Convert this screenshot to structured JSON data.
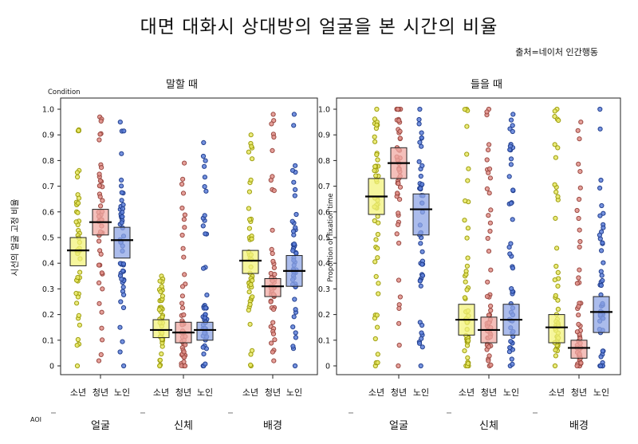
{
  "title": "대면 대화시 상대방의 얼굴을 본 시간의 비율",
  "source": "출처=네이처 인간행동",
  "colors": {
    "groups": [
      "#d8d83a",
      "#d77a72",
      "#4a6fd0"
    ],
    "box_fill": [
      "#f3f37c",
      "#f0a9a3",
      "#8fa6e6"
    ],
    "point_stroke": [
      "#9e9e10",
      "#9b4a43",
      "#23408f"
    ],
    "point_fill": [
      "#e7e764",
      "#e08f88",
      "#5d7fd9"
    ]
  },
  "chart_data": [
    {
      "type": "scatter",
      "panel_title": "말할 때",
      "legend_label": "Condition",
      "ylabel": "시선의 얼굴 고정 비율",
      "xlabel": "AOI",
      "ylim": [
        0,
        1.0
      ],
      "yticks": [
        "0",
        "0.1",
        "0.2",
        "0.3",
        "0.4",
        "0.5",
        "0.6",
        "0.7",
        "0.8",
        "0.9",
        "1.0"
      ],
      "groups": [
        "소년",
        "청년",
        "노인"
      ],
      "categories": [
        "얼굴",
        "신체",
        "배경"
      ],
      "series": [
        {
          "category": "얼굴",
          "group": "소년",
          "mean": 0.45,
          "ci": [
            0.39,
            0.5
          ],
          "point_range": [
            0.0,
            0.92
          ]
        },
        {
          "category": "얼굴",
          "group": "청년",
          "mean": 0.56,
          "ci": [
            0.51,
            0.61
          ],
          "point_range": [
            0.02,
            0.97
          ]
        },
        {
          "category": "얼굴",
          "group": "노인",
          "mean": 0.49,
          "ci": [
            0.42,
            0.54
          ],
          "point_range": [
            0.0,
            0.95
          ]
        },
        {
          "category": "신체",
          "group": "소년",
          "mean": 0.14,
          "ci": [
            0.11,
            0.18
          ],
          "point_range": [
            0.0,
            0.35
          ]
        },
        {
          "category": "신체",
          "group": "청년",
          "mean": 0.13,
          "ci": [
            0.09,
            0.17
          ],
          "point_range": [
            0.0,
            0.79
          ]
        },
        {
          "category": "신체",
          "group": "노인",
          "mean": 0.14,
          "ci": [
            0.1,
            0.17
          ],
          "point_range": [
            0.0,
            0.87
          ]
        },
        {
          "category": "배경",
          "group": "소년",
          "mean": 0.41,
          "ci": [
            0.36,
            0.45
          ],
          "point_range": [
            0.0,
            0.9
          ]
        },
        {
          "category": "배경",
          "group": "청년",
          "mean": 0.31,
          "ci": [
            0.27,
            0.34
          ],
          "point_range": [
            0.02,
            0.98
          ]
        },
        {
          "category": "배경",
          "group": "노인",
          "mean": 0.37,
          "ci": [
            0.31,
            0.43
          ],
          "point_range": [
            0.0,
            0.98
          ]
        }
      ]
    },
    {
      "type": "scatter",
      "panel_title": "들을 때",
      "ylabel": "Proportion of fixation time",
      "ylim": [
        0,
        1.0
      ],
      "yticks": [
        "0",
        "0.1",
        "0.2",
        "0.3",
        "0.4",
        "0.5",
        "0.6",
        "0.7",
        "0.8",
        "0.9",
        "1.0"
      ],
      "groups": [
        "소년",
        "청년",
        "노인"
      ],
      "categories": [
        "얼굴",
        "신체",
        "배경"
      ],
      "series": [
        {
          "category": "얼굴",
          "group": "소년",
          "mean": 0.66,
          "ci": [
            0.59,
            0.73
          ],
          "point_range": [
            0.0,
            1.0
          ]
        },
        {
          "category": "얼굴",
          "group": "청년",
          "mean": 0.79,
          "ci": [
            0.73,
            0.85
          ],
          "point_range": [
            0.0,
            1.0
          ]
        },
        {
          "category": "얼굴",
          "group": "노인",
          "mean": 0.61,
          "ci": [
            0.51,
            0.67
          ],
          "point_range": [
            0.0,
            1.0
          ]
        },
        {
          "category": "신체",
          "group": "소년",
          "mean": 0.18,
          "ci": [
            0.12,
            0.24
          ],
          "point_range": [
            0.0,
            1.0
          ]
        },
        {
          "category": "신체",
          "group": "청년",
          "mean": 0.14,
          "ci": [
            0.09,
            0.19
          ],
          "point_range": [
            0.0,
            1.0
          ]
        },
        {
          "category": "신체",
          "group": "노인",
          "mean": 0.18,
          "ci": [
            0.12,
            0.24
          ],
          "point_range": [
            0.0,
            0.98
          ]
        },
        {
          "category": "배경",
          "group": "소년",
          "mean": 0.15,
          "ci": [
            0.09,
            0.2
          ],
          "point_range": [
            0.0,
            1.0
          ]
        },
        {
          "category": "배경",
          "group": "청년",
          "mean": 0.07,
          "ci": [
            0.03,
            0.1
          ],
          "point_range": [
            0.0,
            0.95
          ]
        },
        {
          "category": "배경",
          "group": "노인",
          "mean": 0.21,
          "ci": [
            0.13,
            0.27
          ],
          "point_range": [
            0.0,
            1.0
          ]
        }
      ]
    }
  ]
}
